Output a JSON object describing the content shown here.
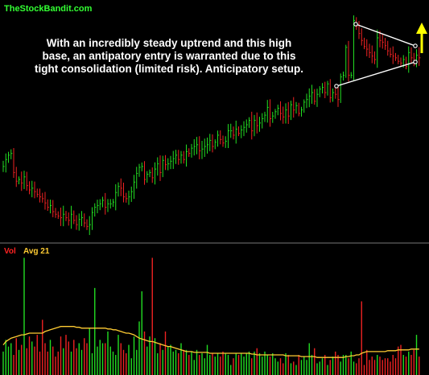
{
  "watermark": "TheStockBandit.com",
  "annotation": "With an incredibly steady uptrend and this high base, an antipatory entry is warranted due to this tight consolidation (limited risk). Anticipatory setup.",
  "volume_label": "Vol",
  "avg_label": "Avg 21",
  "colors": {
    "up": "#22dd22",
    "down": "#ee2222",
    "avg_line": "#ffcc33",
    "trendline": "#ffffff",
    "arrow": "#ffff00",
    "divider": "#777777",
    "background": "#000000"
  },
  "chart_data": [
    {
      "type": "candlestick",
      "panel": "price",
      "series": [
        {
          "name": "price",
          "closes": [
            203,
            195,
            190,
            188,
            210,
            220,
            218,
            222,
            215,
            225,
            230,
            228,
            232,
            235,
            238,
            240,
            245,
            250,
            248,
            255,
            258,
            260,
            262,
            258,
            262,
            265,
            258,
            265,
            270,
            264,
            262,
            268,
            272,
            270,
            256,
            250,
            248,
            246,
            242,
            250,
            246,
            246,
            244,
            233,
            226,
            228,
            238,
            240,
            238,
            232,
            221,
            211,
            204,
            203,
            218,
            212,
            210,
            216,
            206,
            200,
            210,
            196,
            201,
            200,
            197,
            194,
            190,
            195,
            190,
            195,
            186,
            188,
            182,
            180,
            178,
            185,
            183,
            180,
            178,
            173,
            180,
            175,
            167,
            172,
            176,
            174,
            162,
            162,
            167,
            160,
            165,
            161,
            158,
            155,
            150,
            162,
            150,
            156,
            153,
            148,
            144,
            135,
            148,
            145,
            140,
            136,
            142,
            146,
            138,
            145,
            132,
            138,
            133,
            142,
            138,
            129,
            126,
            122,
            118,
            128,
            120,
            114,
            112,
            118,
            108,
            124,
            118,
            120,
            126,
            100,
            98,
            66,
            98,
            98,
            35,
            42,
            50,
            58,
            65,
            68,
            72,
            76,
            80,
            55,
            58,
            60,
            64,
            70,
            74,
            76,
            78,
            82,
            84,
            80,
            88,
            72,
            78,
            82,
            75,
            78
          ]
        }
      ],
      "annotations": [
        "consolidation triangle trendlines",
        "upward arrow"
      ]
    },
    {
      "type": "bar",
      "panel": "volume",
      "series": [
        {
          "name": "Vol",
          "values": [
            28,
            42,
            34,
            38,
            24,
            44,
            30,
            36,
            140,
            32,
            46,
            40,
            34,
            48,
            28,
            66,
            38,
            28,
            42,
            34,
            22,
            28,
            46,
            32,
            48,
            40,
            28,
            42,
            32,
            38,
            30,
            44,
            38,
            56,
            26,
            104,
            34,
            42,
            38,
            38,
            52,
            34,
            28,
            24,
            48,
            38,
            30,
            26,
            36,
            20,
            46,
            30,
            64,
            100,
            52,
            34,
            46,
            140,
            44,
            26,
            38,
            30,
            52,
            34,
            36,
            28,
            30,
            26,
            38,
            30,
            30,
            24,
            28,
            18,
            30,
            24,
            26,
            20,
            36,
            24,
            26,
            22,
            26,
            22,
            28,
            26,
            24,
            12,
            20,
            26,
            24,
            26,
            22,
            26,
            28,
            20,
            28,
            32,
            26,
            22,
            28,
            24,
            22,
            26,
            20,
            16,
            20,
            14,
            26,
            24,
            14,
            16,
            12,
            24,
            18,
            22,
            18,
            38,
            24,
            32,
            14,
            16,
            20,
            24,
            12,
            18,
            22,
            28,
            24,
            16,
            24,
            24,
            20,
            28,
            16,
            14,
            20,
            88,
            12,
            30,
            18,
            22,
            18,
            24,
            22,
            18,
            20,
            20,
            16,
            24,
            20,
            34,
            36,
            24,
            22,
            28,
            24,
            30,
            48,
            22
          ]
        },
        {
          "name": "Avg 21",
          "values": [
            36,
            40,
            42,
            44,
            45,
            46,
            47,
            48,
            48,
            49,
            50,
            50,
            50,
            50,
            50,
            50,
            52,
            53,
            54,
            55,
            56,
            57,
            58,
            58,
            58,
            58,
            58,
            58,
            57,
            57,
            56,
            56,
            56,
            56,
            56,
            56,
            56,
            56,
            56,
            56,
            55,
            55,
            54,
            54,
            53,
            52,
            51,
            50,
            50,
            49,
            48,
            46,
            44,
            43,
            42,
            41,
            40,
            40,
            39,
            38,
            37,
            36,
            35,
            34,
            34,
            33,
            32,
            31,
            30,
            29,
            28,
            28,
            28,
            27,
            27,
            27,
            27,
            27,
            27,
            26,
            26,
            26,
            26,
            26,
            26,
            26,
            26,
            26,
            26,
            26,
            26,
            26,
            26,
            26,
            26,
            25,
            25,
            24,
            24,
            24,
            24,
            24,
            24,
            24,
            24,
            24,
            24,
            24,
            23,
            23,
            23,
            23,
            23,
            23,
            22,
            22,
            22,
            22,
            22,
            22,
            21,
            21,
            21,
            21,
            21,
            21,
            21,
            21,
            21,
            21,
            21,
            22,
            22,
            23,
            23,
            24,
            24,
            26,
            27,
            28,
            28,
            28,
            28,
            28,
            28,
            28,
            28,
            29,
            29,
            29,
            29,
            30,
            30,
            30,
            30,
            30,
            31,
            31,
            31,
            31
          ]
        }
      ]
    }
  ]
}
